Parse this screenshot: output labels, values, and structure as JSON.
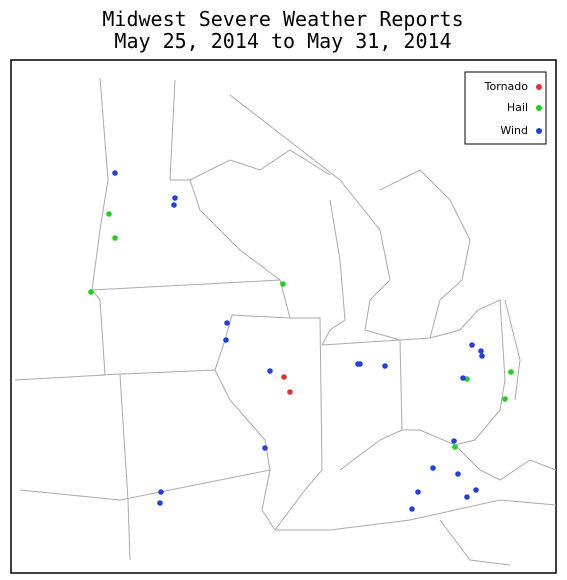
{
  "header": {
    "title": "Midwest Severe Weather Reports",
    "subtitle": "May 25, 2014 to May 31, 2014"
  },
  "legend": {
    "items": [
      {
        "label": "Tornado",
        "color": "#e83030"
      },
      {
        "label": "Hail",
        "color": "#20d020"
      },
      {
        "label": "Wind",
        "color": "#2040e0"
      }
    ]
  }
}
